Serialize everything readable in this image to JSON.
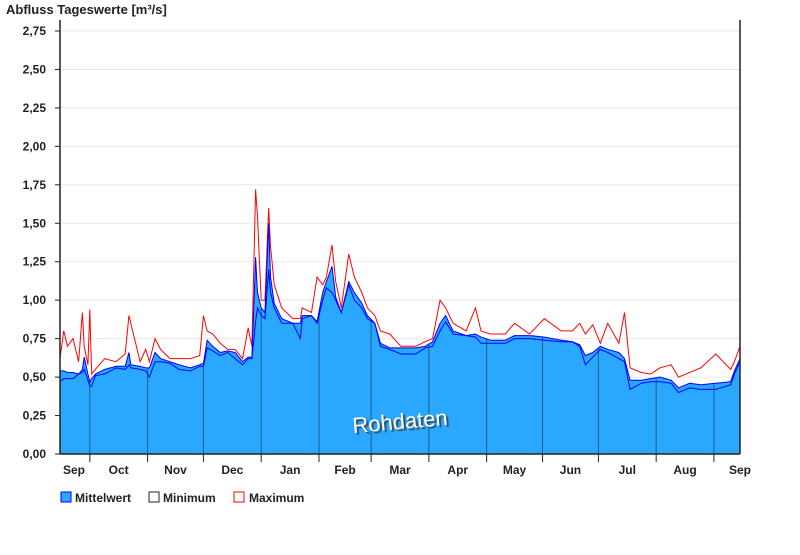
{
  "chart_data": {
    "type": "area",
    "title": "Abfluss Tageswerte [m³/s]",
    "watermark": "Rohdaten",
    "ylim": [
      0,
      2.75
    ],
    "yticks": [
      "0,00",
      "0,25",
      "0,50",
      "0,75",
      "1,00",
      "1,25",
      "1,50",
      "1,75",
      "2,00",
      "2,25",
      "2,50",
      "2,75"
    ],
    "ytick_values": [
      0,
      0.25,
      0.5,
      0.75,
      1,
      1.25,
      1.5,
      1.75,
      2,
      2.25,
      2.5,
      2.75
    ],
    "xlim_days": [
      0,
      365
    ],
    "month_labels": [
      "Sep",
      "Oct",
      "Nov",
      "Dec",
      "Jan",
      "Feb",
      "Mar",
      "Apr",
      "May",
      "Jun",
      "Jul",
      "Aug",
      "Sep"
    ],
    "month_boundaries_days": [
      16,
      47,
      77,
      108,
      139,
      167,
      198,
      229,
      259,
      289,
      320,
      351
    ],
    "grid": true,
    "legend_position": "bottom-left",
    "legend": [
      {
        "name": "Mittelwert",
        "color": "#2aa8ff"
      },
      {
        "name": "Minimum",
        "color": "#0000ff"
      },
      {
        "name": "Maximum",
        "color": "#ff0000"
      }
    ],
    "series_columns": [
      "day",
      "mean",
      "min",
      "max"
    ],
    "series": [
      [
        0,
        0.54,
        0.47,
        0.62
      ],
      [
        2,
        0.54,
        0.49,
        0.8
      ],
      [
        4,
        0.53,
        0.49,
        0.7
      ],
      [
        7,
        0.53,
        0.49,
        0.75
      ],
      [
        10,
        0.52,
        0.52,
        0.6
      ],
      [
        12,
        0.55,
        0.53,
        0.92
      ],
      [
        13,
        0.63,
        0.55,
        0.7
      ],
      [
        15,
        0.52,
        0.48,
        0.58
      ],
      [
        16,
        0.47,
        0.44,
        0.94
      ],
      [
        17,
        0.49,
        0.44,
        0.52
      ],
      [
        19,
        0.52,
        0.51,
        0.55
      ],
      [
        24,
        0.55,
        0.52,
        0.62
      ],
      [
        30,
        0.57,
        0.56,
        0.6
      ],
      [
        35,
        0.57,
        0.55,
        0.65
      ],
      [
        37,
        0.66,
        0.58,
        0.9
      ],
      [
        38,
        0.58,
        0.56,
        0.85
      ],
      [
        43,
        0.57,
        0.55,
        0.6
      ],
      [
        46,
        0.56,
        0.54,
        0.68
      ],
      [
        48,
        0.56,
        0.5,
        0.6
      ],
      [
        51,
        0.66,
        0.6,
        0.75
      ],
      [
        54,
        0.62,
        0.6,
        0.68
      ],
      [
        59,
        0.6,
        0.59,
        0.62
      ],
      [
        64,
        0.58,
        0.55,
        0.62
      ],
      [
        70,
        0.56,
        0.54,
        0.62
      ],
      [
        75,
        0.58,
        0.57,
        0.64
      ],
      [
        77,
        0.59,
        0.57,
        0.9
      ],
      [
        79,
        0.74,
        0.69,
        0.8
      ],
      [
        82,
        0.7,
        0.67,
        0.78
      ],
      [
        86,
        0.66,
        0.64,
        0.72
      ],
      [
        90,
        0.67,
        0.66,
        0.68
      ],
      [
        94,
        0.66,
        0.62,
        0.68
      ],
      [
        98,
        0.6,
        0.58,
        0.62
      ],
      [
        101,
        0.63,
        0.62,
        0.82
      ],
      [
        103,
        0.63,
        0.62,
        0.7
      ],
      [
        105,
        1.28,
        0.86,
        1.72
      ],
      [
        106,
        1.05,
        0.95,
        1.55
      ],
      [
        108,
        0.95,
        0.9,
        1.0
      ],
      [
        110,
        0.92,
        0.88,
        1.0
      ],
      [
        112,
        1.5,
        1.2,
        1.6
      ],
      [
        113,
        1.15,
        1.05,
        1.35
      ],
      [
        115,
        0.98,
        0.95,
        1.1
      ],
      [
        119,
        0.88,
        0.85,
        0.95
      ],
      [
        125,
        0.85,
        0.85,
        0.88
      ],
      [
        129,
        0.85,
        0.75,
        0.88
      ],
      [
        130,
        0.9,
        0.88,
        0.95
      ],
      [
        135,
        0.9,
        0.9,
        0.92
      ],
      [
        138,
        0.86,
        0.85,
        1.15
      ],
      [
        141,
        1.05,
        1.0,
        1.1
      ],
      [
        143,
        1.12,
        1.08,
        1.15
      ],
      [
        146,
        1.22,
        1.05,
        1.36
      ],
      [
        148,
        1.02,
        1.0,
        1.12
      ],
      [
        151,
        0.92,
        0.92,
        0.95
      ],
      [
        155,
        1.12,
        1.1,
        1.3
      ],
      [
        158,
        1.05,
        1.0,
        1.15
      ],
      [
        162,
        0.98,
        0.95,
        1.05
      ],
      [
        165,
        0.9,
        0.88,
        0.95
      ],
      [
        169,
        0.85,
        0.85,
        0.9
      ],
      [
        172,
        0.72,
        0.7,
        0.8
      ],
      [
        177,
        0.69,
        0.68,
        0.78
      ],
      [
        183,
        0.69,
        0.65,
        0.7
      ],
      [
        191,
        0.69,
        0.65,
        0.7
      ],
      [
        196,
        0.7,
        0.69,
        0.73
      ],
      [
        200,
        0.73,
        0.7,
        0.75
      ],
      [
        204,
        0.85,
        0.8,
        1.0
      ],
      [
        207,
        0.9,
        0.86,
        0.95
      ],
      [
        211,
        0.8,
        0.78,
        0.85
      ],
      [
        218,
        0.77,
        0.77,
        0.8
      ],
      [
        223,
        0.78,
        0.76,
        0.95
      ],
      [
        226,
        0.76,
        0.72,
        0.8
      ],
      [
        231,
        0.74,
        0.72,
        0.78
      ],
      [
        239,
        0.74,
        0.72,
        0.78
      ],
      [
        244,
        0.77,
        0.75,
        0.85
      ],
      [
        252,
        0.77,
        0.75,
        0.78
      ],
      [
        260,
        0.76,
        0.74,
        0.88
      ],
      [
        269,
        0.74,
        0.73,
        0.8
      ],
      [
        275,
        0.73,
        0.73,
        0.8
      ],
      [
        279,
        0.71,
        0.7,
        0.85
      ],
      [
        282,
        0.64,
        0.58,
        0.78
      ],
      [
        286,
        0.66,
        0.63,
        0.84
      ],
      [
        290,
        0.7,
        0.68,
        0.72
      ],
      [
        294,
        0.68,
        0.66,
        0.85
      ],
      [
        300,
        0.66,
        0.62,
        0.72
      ],
      [
        303,
        0.62,
        0.6,
        0.92
      ],
      [
        306,
        0.48,
        0.42,
        0.56
      ],
      [
        312,
        0.48,
        0.46,
        0.53
      ],
      [
        317,
        0.49,
        0.47,
        0.52
      ],
      [
        322,
        0.5,
        0.47,
        0.56
      ],
      [
        328,
        0.48,
        0.46,
        0.58
      ],
      [
        332,
        0.43,
        0.4,
        0.5
      ],
      [
        338,
        0.46,
        0.43,
        0.53
      ],
      [
        344,
        0.45,
        0.42,
        0.56
      ],
      [
        352,
        0.46,
        0.42,
        0.65
      ],
      [
        360,
        0.47,
        0.45,
        0.55
      ],
      [
        362,
        0.54,
        0.52,
        0.6
      ],
      [
        365,
        0.62,
        0.6,
        0.7
      ]
    ]
  }
}
